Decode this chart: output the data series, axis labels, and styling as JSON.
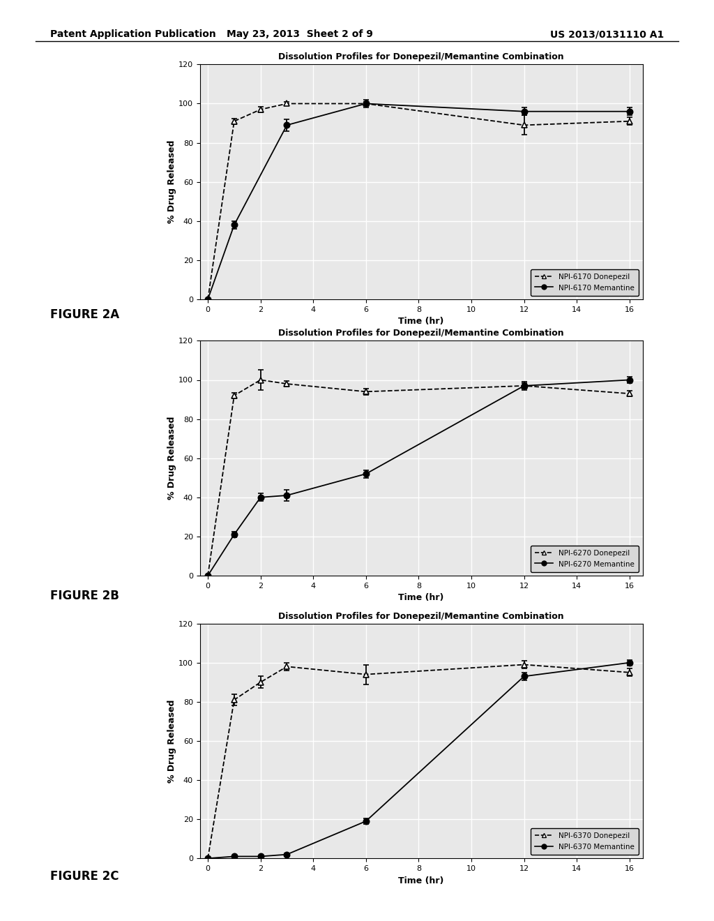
{
  "title": "Dissolution Profiles for Donepezil/Memantine Combination",
  "xlabel": "Time (hr)",
  "ylabel": "% Drug Released",
  "header_left": "Patent Application Publication",
  "header_mid": "May 23, 2013  Sheet 2 of 9",
  "header_right": "US 2013/0131110 A1",
  "figures": [
    {
      "label": "FIGURE 2A",
      "donepezil_label": "NPI-6170 Donepezil",
      "memantine_label": "NPI-6170 Memantine",
      "donepezil_x": [
        0,
        1,
        2,
        3,
        6,
        12,
        16
      ],
      "donepezil_y": [
        0,
        91,
        97,
        100,
        100,
        89,
        91
      ],
      "donepezil_yerr": [
        0,
        1.5,
        1.5,
        1.0,
        1.0,
        5.0,
        2.0
      ],
      "memantine_x": [
        0,
        1,
        3,
        6,
        12,
        16
      ],
      "memantine_y": [
        0,
        38,
        89,
        100,
        96,
        96
      ],
      "memantine_yerr": [
        0,
        2.0,
        3.0,
        2.0,
        2.0,
        2.0
      ]
    },
    {
      "label": "FIGURE 2B",
      "donepezil_label": "NPI-6270 Donepezil",
      "memantine_label": "NPI-6270 Memantine",
      "donepezil_x": [
        0,
        1,
        2,
        3,
        6,
        12,
        16
      ],
      "donepezil_y": [
        0,
        92,
        100,
        98,
        94,
        97,
        93
      ],
      "donepezil_yerr": [
        0,
        1.5,
        5.0,
        1.5,
        1.5,
        1.5,
        1.5
      ],
      "memantine_x": [
        0,
        1,
        2,
        3,
        6,
        12,
        16
      ],
      "memantine_y": [
        0,
        21,
        40,
        41,
        52,
        97,
        100
      ],
      "memantine_yerr": [
        0,
        1.5,
        2.0,
        3.0,
        2.0,
        2.0,
        1.5
      ]
    },
    {
      "label": "FIGURE 2C",
      "donepezil_label": "NPI-6370 Donepezil",
      "memantine_label": "NPI-6370 Memantine",
      "donepezil_x": [
        0,
        1,
        2,
        3,
        6,
        12,
        16
      ],
      "donepezil_y": [
        0,
        81,
        90,
        98,
        94,
        99,
        95
      ],
      "donepezil_yerr": [
        0,
        3.0,
        3.0,
        2.0,
        5.0,
        2.0,
        2.0
      ],
      "memantine_x": [
        0,
        1,
        2,
        3,
        6,
        12,
        16
      ],
      "memantine_y": [
        0,
        1,
        1,
        2,
        19,
        93,
        100
      ],
      "memantine_yerr": [
        0,
        0.5,
        0.5,
        0.5,
        1.5,
        2.0,
        1.5
      ]
    }
  ],
  "ylim": [
    0,
    120
  ],
  "yticks": [
    0,
    20,
    40,
    60,
    80,
    100,
    120
  ],
  "xticks": [
    0,
    2,
    4,
    6,
    8,
    10,
    12,
    14,
    16
  ],
  "xlim": [
    -0.3,
    16.5
  ],
  "plot_bg": "#e8e8e8",
  "grid_color": "#ffffff"
}
